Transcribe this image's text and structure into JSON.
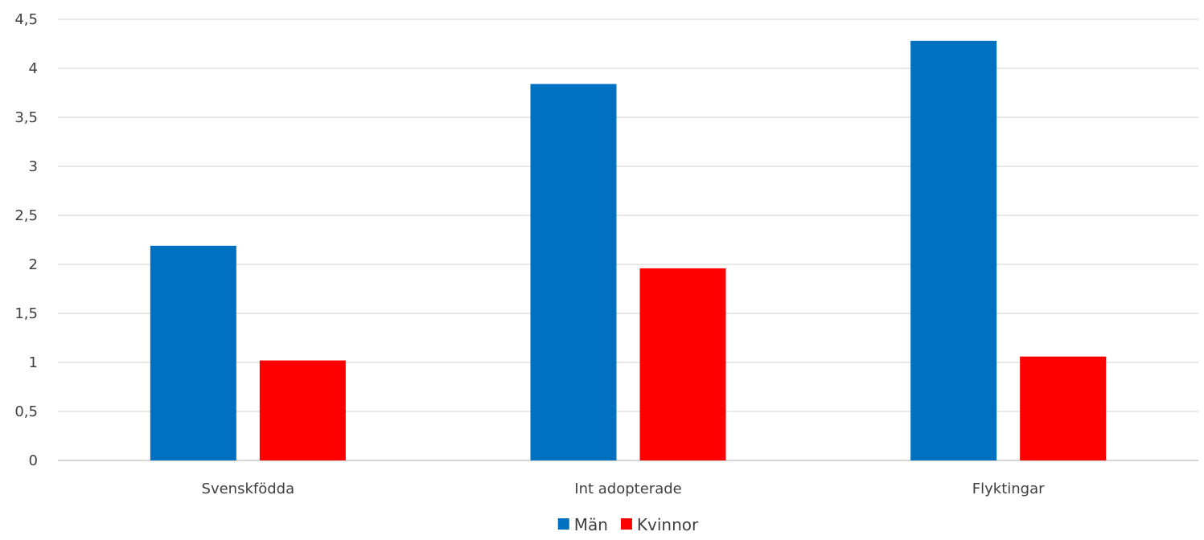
{
  "chart_data": {
    "type": "bar",
    "title": "",
    "xlabel": "",
    "ylabel": "",
    "categories": [
      "Svenskfödda",
      "Int adopterade",
      "Flyktingar"
    ],
    "series": [
      {
        "name": "Män",
        "color": "#0070C0",
        "values": [
          2.19,
          3.84,
          4.28
        ]
      },
      {
        "name": "Kvinnor",
        "color": "#FF0000",
        "values": [
          1.02,
          1.96,
          1.06
        ]
      }
    ],
    "ylim": [
      0,
      4.5
    ],
    "yticks": [
      "0",
      "0,5",
      "1",
      "1,5",
      "2",
      "2,5",
      "3",
      "3,5",
      "4",
      "4,5"
    ],
    "grid": true,
    "legend_position": "bottom",
    "gridline_color": "#D9D9D9",
    "axis_color": "#BFBFBF"
  }
}
